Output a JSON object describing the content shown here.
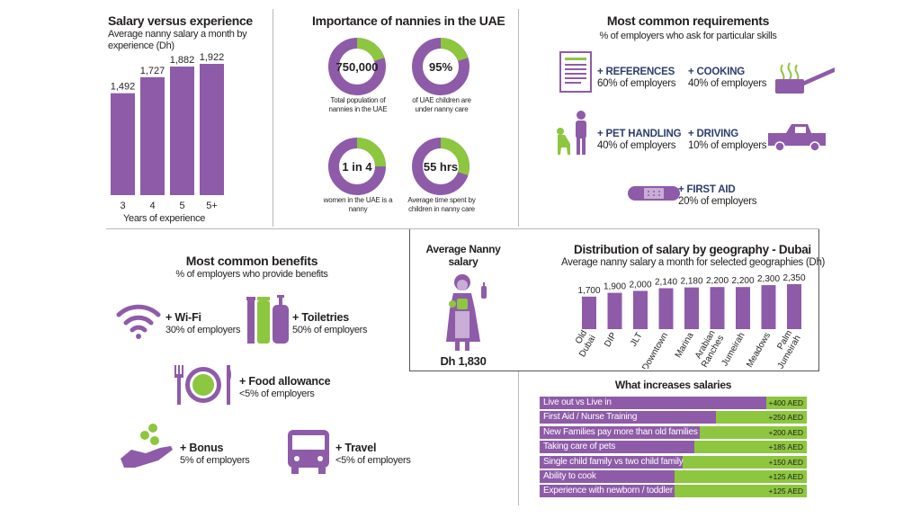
{
  "colors": {
    "purple": "#8e5ba8",
    "green": "#8dc63f",
    "navy": "#2c3e6e"
  },
  "salary_exp": {
    "title": "Salary versus experience",
    "subtitle": "Average nanny salary a month by experience (Dh)",
    "xlabel": "Years of experience"
  },
  "importance": {
    "title": "Importance of nannies in the UAE",
    "donuts": [
      {
        "value": "750,000",
        "caption": "Total population of nannies in the UAE",
        "fraction": 0.2
      },
      {
        "value": "95%",
        "caption": "of UAE children are under nanny care",
        "fraction": 0.2
      },
      {
        "value": "1 in 4",
        "caption": "women in the UAE is a nanny",
        "fraction": 0.25
      },
      {
        "value": "55 hrs",
        "caption": "Average time spent by children in nanny care",
        "fraction": 0.3
      }
    ]
  },
  "requirements": {
    "title": "Most common requirements",
    "subtitle": "% of employers who ask for particular skills",
    "items": [
      {
        "title": "+ REFERENCES",
        "sub": "60% of employers",
        "icon": "document-icon"
      },
      {
        "title": "+ COOKING",
        "sub": "40% of employers",
        "icon": "cooking-pot-icon"
      },
      {
        "title": "+ PET HANDLING",
        "sub": "40% of employers",
        "icon": "person-with-dog-icon"
      },
      {
        "title": "+ DRIVING",
        "sub": "10% of employers",
        "icon": "pickup-truck-icon"
      },
      {
        "title": "+ FIRST AID",
        "sub": "20% of employers",
        "icon": "bandage-icon"
      }
    ]
  },
  "benefits": {
    "title": "Most common benefits",
    "subtitle": "% of employers who provide benefits",
    "items": [
      {
        "title": "+ Wi-Fi",
        "sub": "30% of employers",
        "icon": "wifi-icon"
      },
      {
        "title": "+ Toiletries",
        "sub": "50% of employers",
        "icon": "toiletries-icon"
      },
      {
        "title": "+ Food allowance",
        "sub": "<5% of employers",
        "icon": "plate-cutlery-icon"
      },
      {
        "title": "+ Bonus",
        "sub": "5% of employers",
        "icon": "hand-coins-icon"
      },
      {
        "title": "+ Travel",
        "sub": "<5% of employers",
        "icon": "bus-icon"
      }
    ]
  },
  "avg_salary": {
    "title": "Average Nanny salary",
    "value": "Dh 1,830"
  },
  "geo": {
    "title": "Distribution of salary by geography - Dubai",
    "subtitle": "Average nanny salary a month for selected geographies (Dh)"
  },
  "increases": {
    "title": "What increases salaries"
  },
  "chart_data": [
    {
      "type": "bar",
      "title": "Salary versus experience",
      "subtitle": "Average nanny salary a month by experience (Dh)",
      "xlabel": "Years of experience",
      "categories": [
        "3",
        "4",
        "5",
        "5+"
      ],
      "values": [
        1492,
        1727,
        1882,
        1922
      ]
    },
    {
      "type": "bar",
      "title": "Distribution of salary by geography - Dubai",
      "subtitle": "Average nanny salary a month for selected geographies (Dh)",
      "categories": [
        "Old Dubai",
        "DIP",
        "JLT",
        "Downtown",
        "Marina",
        "Arabian Ranches",
        "Jumeirah",
        "Meadows",
        "Palm Jumeirah"
      ],
      "values": [
        1700,
        1900,
        2000,
        2140,
        2180,
        2200,
        2200,
        2300,
        2350
      ]
    },
    {
      "type": "bar",
      "title": "What increases salaries",
      "categories": [
        "Live out vs Live in",
        "First Aid  / Nurse Training",
        "New Families pay more than old families",
        "Taking care of pets",
        "Single child family vs two child family",
        "Ability to cook",
        "Experience with newborn / toddler"
      ],
      "values": [
        400,
        250,
        200,
        185,
        150,
        125,
        125
      ],
      "value_labels": [
        "+400 AED",
        "+250 AED",
        "+200 AED",
        "+185 AED",
        "+150 AED",
        "+125 AED",
        "+125 AED"
      ]
    }
  ]
}
